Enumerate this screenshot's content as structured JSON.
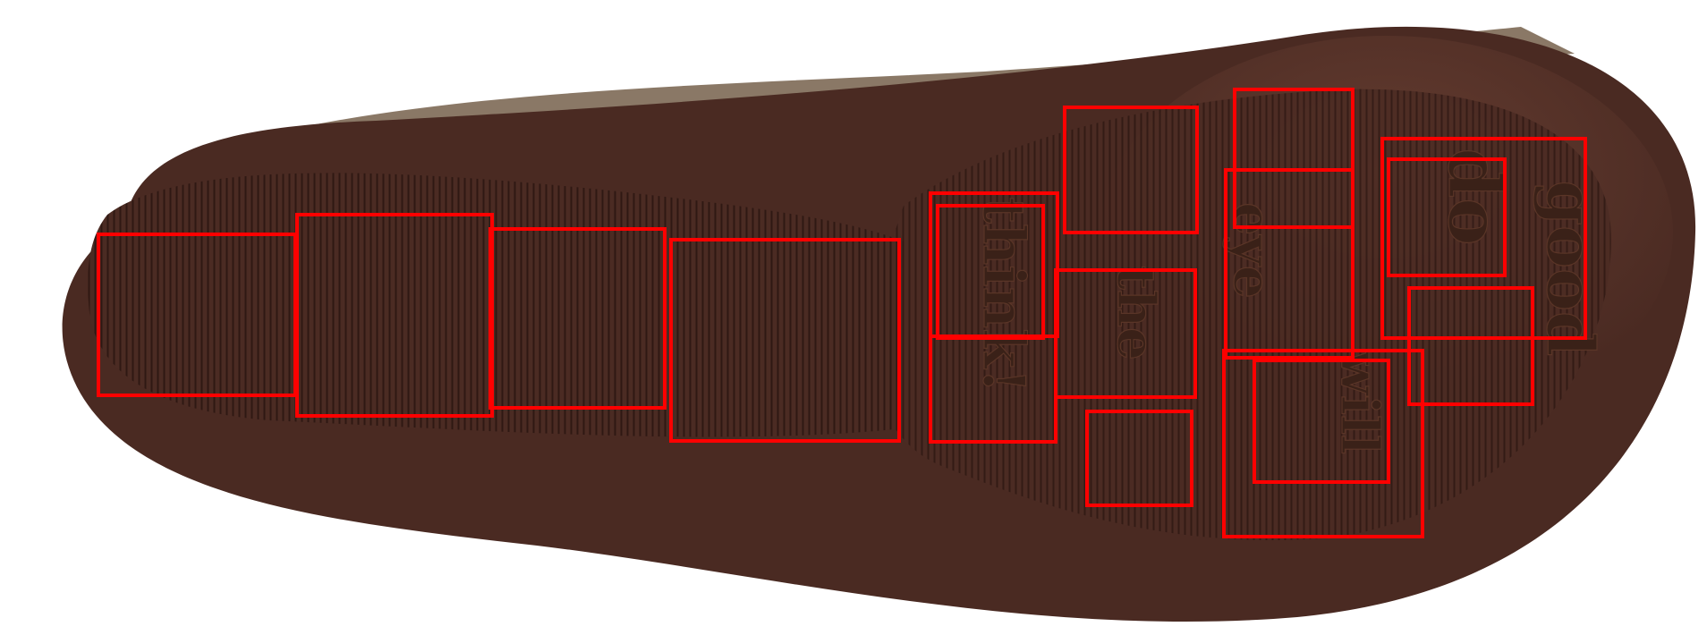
{
  "image": {
    "subject": "shoe-sole",
    "sole_color": "#4a2a22",
    "sole_rim_color": "#6b4636",
    "upper_color": "#8a7866",
    "background_color": "#ffffff",
    "annotation_color": "#ff0000"
  },
  "sole_text": {
    "word1": "think!",
    "word2": "the",
    "word3": "eye",
    "word4": "will",
    "word5": "do",
    "word6": "good"
  },
  "annotations": {
    "box_count": 20
  }
}
